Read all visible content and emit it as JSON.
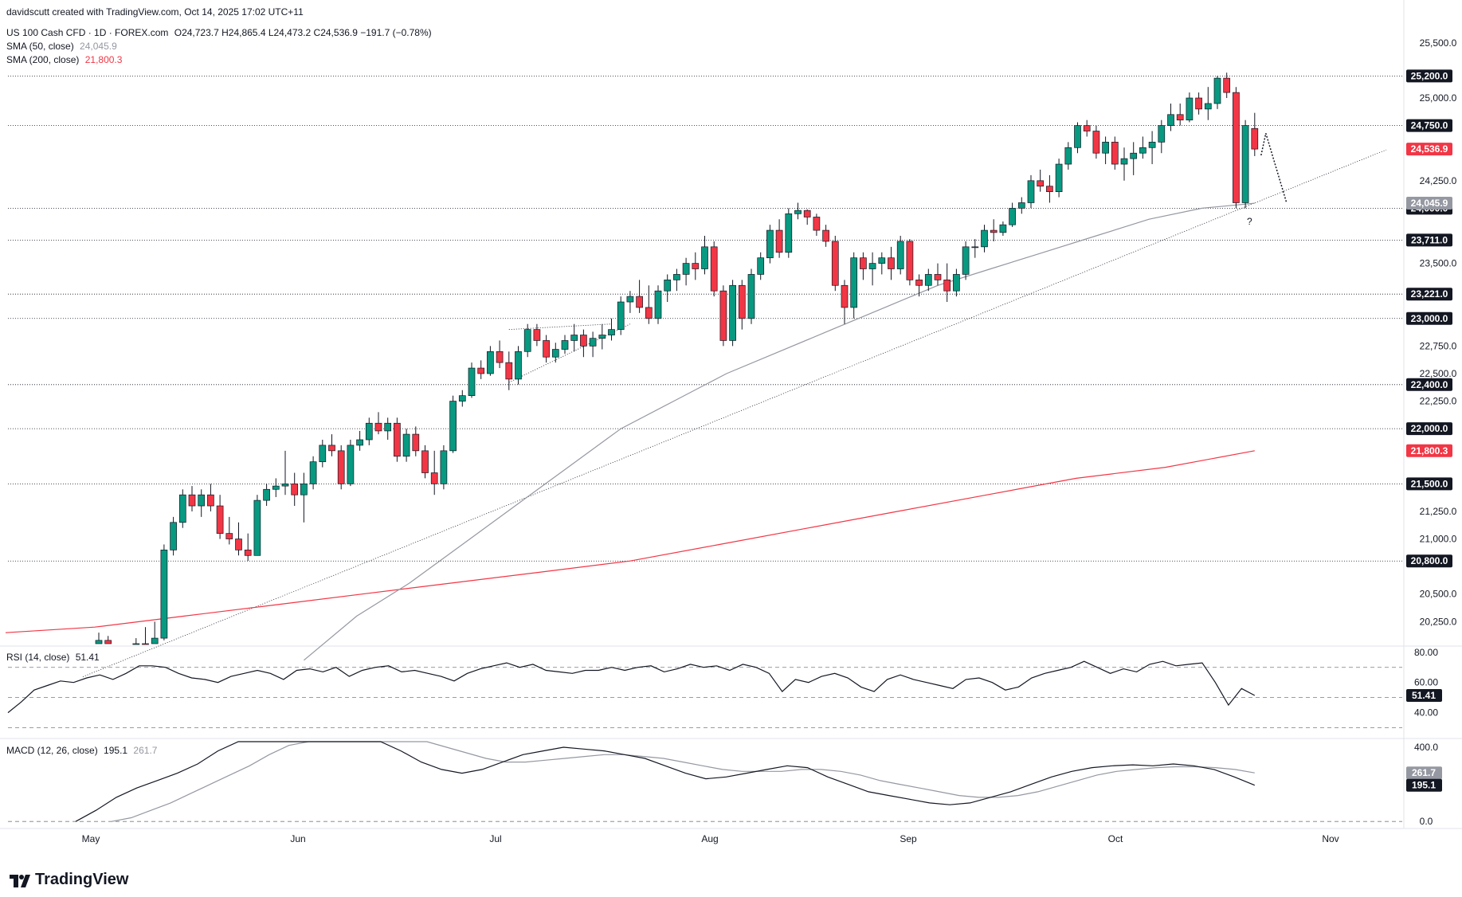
{
  "header": {
    "creator": "davidscutt created with TradingView.com, Oct 14, 2025 17:02 UTC+11",
    "symbol": "US 100 Cash CFD · 1D · FOREX.com",
    "ohlc": "O24,723.7 H24,865.4 L24,473.2 C24,536.9 −191.7 (−0.78%)",
    "sma50_label": "SMA (50, close)",
    "sma50_value": "24,045.9",
    "sma200_label": "SMA (200, close)",
    "sma200_value": "21,800.3"
  },
  "rsi_header": {
    "label": "RSI (14, close)",
    "value": "51.41"
  },
  "macd_header": {
    "label": "MACD (12, 26, close)",
    "macd_value": "195.1",
    "signal_value": "261.7"
  },
  "footer": {
    "brand": "TradingView"
  },
  "annotation": {
    "question": "?"
  },
  "colors": {
    "up": "#089981",
    "down": "#f23645",
    "sma50": "#9598a1",
    "sma200": "#f23645",
    "line": "#131722"
  },
  "chart_data": {
    "type": "candlestick",
    "price_axis": {
      "min": 20050,
      "max": 25600,
      "ticks": [
        "25,500.0",
        "25,000.0",
        "24,250.0",
        "23,500.0",
        "22,750.0",
        "22,500.0",
        "22,250.0",
        "21,250.0",
        "21,000.0",
        "20,500.0",
        "20,250.0"
      ]
    },
    "time_axis": {
      "labels": [
        "May",
        "Jun",
        "Jul",
        "Aug",
        "Sep",
        "Oct",
        "Nov"
      ]
    },
    "levels": [
      {
        "value": 25200,
        "label": "25,200.0"
      },
      {
        "value": 24750,
        "label": "24,750.0"
      },
      {
        "value": 24000,
        "label": "24,000.0"
      },
      {
        "value": 23711,
        "label": "23,711.0"
      },
      {
        "value": 23221,
        "label": "23,221.0"
      },
      {
        "value": 23000,
        "label": "23,000.0"
      },
      {
        "value": 22400,
        "label": "22,400.0"
      },
      {
        "value": 22000,
        "label": "22,000.0"
      },
      {
        "value": 21500,
        "label": "21,500.0"
      },
      {
        "value": 20800,
        "label": "20,800.0"
      }
    ],
    "price_tags": [
      {
        "value": 24536.9,
        "label": "24,536.9",
        "color": "#f23645"
      },
      {
        "value": 24045.9,
        "label": "24,045.9",
        "color": "#9598a1"
      },
      {
        "value": 21800.3,
        "label": "21,800.3",
        "color": "#f23645"
      }
    ],
    "candles": [
      [
        20000,
        20150,
        19900,
        20080
      ],
      [
        20080,
        20120,
        19950,
        19990
      ],
      [
        19990,
        20050,
        19700,
        19800
      ],
      [
        19800,
        19950,
        19650,
        19900
      ],
      [
        19900,
        20100,
        19850,
        20050
      ],
      [
        20050,
        20200,
        19900,
        19950
      ],
      [
        19950,
        20250,
        19900,
        20100
      ],
      [
        20100,
        20950,
        20080,
        20900
      ],
      [
        20900,
        21200,
        20850,
        21150
      ],
      [
        21150,
        21450,
        21100,
        21400
      ],
      [
        21400,
        21480,
        21250,
        21300
      ],
      [
        21300,
        21450,
        21200,
        21400
      ],
      [
        21400,
        21500,
        21250,
        21300
      ],
      [
        21300,
        21400,
        21000,
        21050
      ],
      [
        21050,
        21200,
        20950,
        21000
      ],
      [
        21000,
        21150,
        20850,
        20900
      ],
      [
        20900,
        21050,
        20800,
        20850
      ],
      [
        20850,
        21400,
        20850,
        21350
      ],
      [
        21350,
        21500,
        21300,
        21450
      ],
      [
        21450,
        21550,
        21380,
        21480
      ],
      [
        21480,
        21800,
        21400,
        21500
      ],
      [
        21500,
        21600,
        21300,
        21400
      ],
      [
        21400,
        21600,
        21150,
        21500
      ],
      [
        21500,
        21750,
        21450,
        21700
      ],
      [
        21700,
        21900,
        21650,
        21850
      ],
      [
        21850,
        21950,
        21750,
        21800
      ],
      [
        21800,
        21850,
        21450,
        21500
      ],
      [
        21500,
        21900,
        21480,
        21850
      ],
      [
        21850,
        21980,
        21800,
        21900
      ],
      [
        21900,
        22100,
        21850,
        22050
      ],
      [
        22050,
        22150,
        21950,
        21980
      ],
      [
        21980,
        22100,
        21900,
        22050
      ],
      [
        22050,
        22100,
        21700,
        21750
      ],
      [
        21750,
        22000,
        21700,
        21950
      ],
      [
        21950,
        22020,
        21750,
        21800
      ],
      [
        21800,
        21850,
        21550,
        21600
      ],
      [
        21600,
        21800,
        21400,
        21500
      ],
      [
        21500,
        21850,
        21450,
        21800
      ],
      [
        21800,
        22300,
        21780,
        22250
      ],
      [
        22250,
        22350,
        22200,
        22300
      ],
      [
        22300,
        22600,
        22280,
        22550
      ],
      [
        22550,
        22620,
        22450,
        22500
      ],
      [
        22500,
        22750,
        22480,
        22700
      ],
      [
        22700,
        22800,
        22550,
        22600
      ],
      [
        22600,
        22700,
        22350,
        22450
      ],
      [
        22450,
        22750,
        22400,
        22700
      ],
      [
        22700,
        22950,
        22650,
        22900
      ],
      [
        22900,
        22950,
        22750,
        22800
      ],
      [
        22800,
        22850,
        22600,
        22650
      ],
      [
        22650,
        22780,
        22600,
        22720
      ],
      [
        22720,
        22850,
        22680,
        22800
      ],
      [
        22800,
        22950,
        22700,
        22850
      ],
      [
        22850,
        22900,
        22650,
        22750
      ],
      [
        22750,
        22880,
        22650,
        22820
      ],
      [
        22820,
        22950,
        22720,
        22850
      ],
      [
        22850,
        23000,
        22800,
        22900
      ],
      [
        22900,
        23200,
        22850,
        23150
      ],
      [
        23150,
        23250,
        23050,
        23200
      ],
      [
        23200,
        23350,
        23050,
        23100
      ],
      [
        23100,
        23300,
        22950,
        23000
      ],
      [
        23000,
        23300,
        22950,
        23250
      ],
      [
        23250,
        23400,
        23150,
        23350
      ],
      [
        23350,
        23450,
        23250,
        23400
      ],
      [
        23400,
        23550,
        23300,
        23500
      ],
      [
        23500,
        23600,
        23350,
        23450
      ],
      [
        23450,
        23750,
        23400,
        23650
      ],
      [
        23650,
        23700,
        23200,
        23250
      ],
      [
        23250,
        23300,
        22750,
        22800
      ],
      [
        22800,
        23350,
        22750,
        23300
      ],
      [
        23300,
        23350,
        22900,
        23000
      ],
      [
        23000,
        23450,
        22950,
        23400
      ],
      [
        23400,
        23600,
        23350,
        23550
      ],
      [
        23550,
        23850,
        23500,
        23800
      ],
      [
        23800,
        23900,
        23550,
        23600
      ],
      [
        23600,
        24000,
        23550,
        23950
      ],
      [
        23950,
        24050,
        23900,
        23980
      ],
      [
        23980,
        23990,
        23850,
        23920
      ],
      [
        23920,
        23950,
        23750,
        23800
      ],
      [
        23800,
        23850,
        23650,
        23700
      ],
      [
        23700,
        23750,
        23250,
        23300
      ],
      [
        23300,
        23350,
        22950,
        23100
      ],
      [
        23100,
        23600,
        23000,
        23550
      ],
      [
        23550,
        23600,
        23350,
        23450
      ],
      [
        23450,
        23600,
        23300,
        23500
      ],
      [
        23500,
        23600,
        23400,
        23550
      ],
      [
        23550,
        23650,
        23350,
        23450
      ],
      [
        23450,
        23750,
        23400,
        23700
      ],
      [
        23700,
        23720,
        23300,
        23350
      ],
      [
        23350,
        23400,
        23200,
        23300
      ],
      [
        23300,
        23450,
        23250,
        23400
      ],
      [
        23400,
        23500,
        23300,
        23350
      ],
      [
        23350,
        23500,
        23150,
        23250
      ],
      [
        23250,
        23450,
        23200,
        23400
      ],
      [
        23400,
        23700,
        23350,
        23650
      ],
      [
        23650,
        23720,
        23550,
        23650
      ],
      [
        23650,
        23850,
        23600,
        23800
      ],
      [
        23800,
        23900,
        23700,
        23780
      ],
      [
        23780,
        23880,
        23750,
        23850
      ],
      [
        23850,
        24050,
        23830,
        24000
      ],
      [
        24000,
        24100,
        23950,
        24050
      ],
      [
        24050,
        24300,
        24000,
        24250
      ],
      [
        24250,
        24350,
        24150,
        24200
      ],
      [
        24200,
        24300,
        24050,
        24150
      ],
      [
        24150,
        24450,
        24100,
        24400
      ],
      [
        24400,
        24600,
        24350,
        24550
      ],
      [
        24550,
        24780,
        24500,
        24750
      ],
      [
        24750,
        24800,
        24650,
        24700
      ],
      [
        24700,
        24750,
        24450,
        24500
      ],
      [
        24500,
        24650,
        24400,
        24600
      ],
      [
        24600,
        24650,
        24350,
        24400
      ],
      [
        24400,
        24550,
        24250,
        24450
      ],
      [
        24450,
        24600,
        24300,
        24500
      ],
      [
        24500,
        24650,
        24450,
        24550
      ],
      [
        24550,
        24700,
        24400,
        24600
      ],
      [
        24600,
        24800,
        24500,
        24750
      ],
      [
        24750,
        24950,
        24700,
        24850
      ],
      [
        24850,
        24950,
        24750,
        24800
      ],
      [
        24800,
        25050,
        24780,
        25000
      ],
      [
        25000,
        25050,
        24850,
        24900
      ],
      [
        24900,
        25100,
        24800,
        24950
      ],
      [
        24950,
        25200,
        24900,
        25180
      ],
      [
        25180,
        25230,
        25000,
        25050
      ],
      [
        25050,
        25100,
        24000,
        24050
      ],
      [
        24050,
        24800,
        24000,
        24750
      ],
      [
        24723.7,
        24865.4,
        24473.2,
        24536.9
      ]
    ],
    "sma200": [
      20150,
      20200,
      20300,
      20400,
      20500,
      20600,
      20700,
      20800,
      20950,
      21100,
      21250,
      21400,
      21550,
      21650,
      21800
    ],
    "sma50": [
      19900,
      20300,
      20600,
      20950,
      21300,
      21650,
      22000,
      22250,
      22500,
      22700,
      22900,
      23100,
      23300,
      23450,
      23600,
      23750,
      23900,
      24000,
      24045.9
    ],
    "rsi": {
      "label": "RSI (14, close)",
      "current": 51.41,
      "axis": [
        "80.00",
        "60.00",
        "40.00"
      ],
      "levels": [
        70,
        50,
        30
      ],
      "values": [
        40,
        47,
        55,
        58,
        61,
        60,
        63,
        65,
        62,
        66,
        71,
        71,
        70,
        66,
        63,
        62,
        60,
        64,
        66,
        68,
        66,
        62,
        68,
        69,
        67,
        70,
        64,
        68,
        70,
        71,
        67,
        68,
        66,
        64,
        61,
        66,
        69,
        71,
        73,
        70,
        72,
        68,
        67,
        66,
        68,
        68,
        70,
        68,
        70,
        71,
        67,
        69,
        72,
        70,
        71,
        68,
        72,
        70,
        66,
        54,
        62,
        60,
        64,
        66,
        63,
        57,
        54,
        62,
        65,
        62,
        60,
        58,
        56,
        62,
        63,
        60,
        55,
        57,
        63,
        66,
        68,
        70,
        74,
        70,
        66,
        69,
        67,
        72,
        74,
        71,
        72,
        73,
        60,
        45,
        56,
        51.41
      ]
    },
    "macd": {
      "label": "MACD (12, 26, close)",
      "macd": 195.1,
      "signal": 261.7,
      "axis": [
        "400.0",
        "0.0"
      ],
      "macd_values": [
        0,
        60,
        130,
        180,
        220,
        260,
        310,
        380,
        450,
        500,
        530,
        520,
        510,
        490,
        460,
        430,
        380,
        320,
        280,
        260,
        280,
        320,
        360,
        380,
        400,
        390,
        380,
        360,
        340,
        300,
        260,
        230,
        240,
        260,
        280,
        300,
        290,
        240,
        200,
        160,
        140,
        120,
        100,
        90,
        100,
        130,
        160,
        200,
        240,
        270,
        290,
        300,
        305,
        300,
        310,
        300,
        280,
        240,
        195.1
      ],
      "signal_values": [
        0,
        20,
        60,
        100,
        150,
        200,
        250,
        300,
        360,
        410,
        450,
        470,
        480,
        480,
        470,
        450,
        430,
        400,
        370,
        340,
        320,
        320,
        330,
        340,
        350,
        360,
        360,
        350,
        340,
        320,
        300,
        280,
        270,
        270,
        270,
        280,
        280,
        270,
        250,
        220,
        200,
        180,
        160,
        140,
        130,
        130,
        140,
        160,
        190,
        220,
        250,
        270,
        280,
        290,
        295,
        295,
        290,
        280,
        261.7
      ]
    }
  }
}
